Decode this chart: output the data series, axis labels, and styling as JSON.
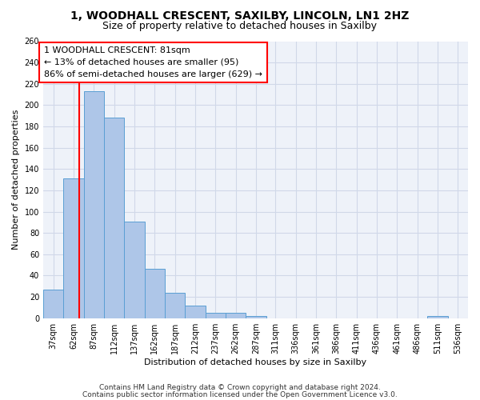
{
  "title_line1": "1, WOODHALL CRESCENT, SAXILBY, LINCOLN, LN1 2HZ",
  "title_line2": "Size of property relative to detached houses in Saxilby",
  "xlabel": "Distribution of detached houses by size in Saxilby",
  "ylabel": "Number of detached properties",
  "bar_edges": [
    37,
    62,
    87,
    112,
    137,
    162,
    187,
    212,
    237,
    262,
    287,
    311,
    336,
    361,
    386,
    411,
    436,
    461,
    486,
    511,
    536
  ],
  "bar_heights": [
    27,
    131,
    213,
    188,
    91,
    46,
    24,
    12,
    5,
    5,
    2,
    0,
    0,
    0,
    0,
    0,
    0,
    0,
    0,
    2,
    0
  ],
  "bar_color": "#aec6e8",
  "bar_edgecolor": "#5a9fd4",
  "grid_color": "#d0d8e8",
  "background_color": "#eef2f9",
  "annotation_text": "1 WOODHALL CRESCENT: 81sqm\n← 13% of detached houses are smaller (95)\n86% of semi-detached houses are larger (629) →",
  "redline_x": 81,
  "ylim": [
    0,
    260
  ],
  "yticks": [
    0,
    20,
    40,
    60,
    80,
    100,
    120,
    140,
    160,
    180,
    200,
    220,
    240,
    260
  ],
  "tick_labels": [
    "37sqm",
    "62sqm",
    "87sqm",
    "112sqm",
    "137sqm",
    "162sqm",
    "187sqm",
    "212sqm",
    "237sqm",
    "262sqm",
    "287sqm",
    "311sqm",
    "336sqm",
    "361sqm",
    "386sqm",
    "411sqm",
    "436sqm",
    "461sqm",
    "486sqm",
    "511sqm",
    "536sqm"
  ],
  "footnote1": "Contains HM Land Registry data © Crown copyright and database right 2024.",
  "footnote2": "Contains public sector information licensed under the Open Government Licence v3.0.",
  "title_fontsize": 10,
  "subtitle_fontsize": 9,
  "axis_label_fontsize": 8,
  "tick_fontsize": 7,
  "annotation_fontsize": 8,
  "footnote_fontsize": 6.5
}
